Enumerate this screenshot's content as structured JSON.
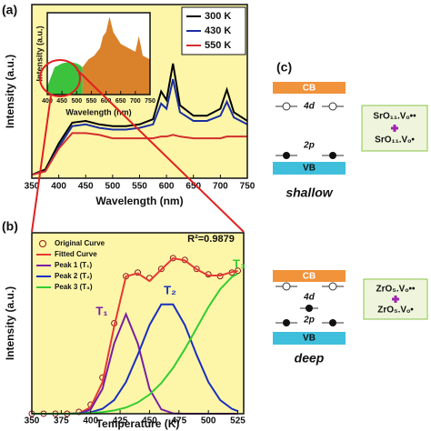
{
  "chart_data": [
    {
      "type": "line",
      "label": "(a)",
      "xlabel": "Wavelength (nm)",
      "ylabel": "Intensity (a.u.)",
      "x": [
        350,
        375,
        400,
        425,
        450,
        475,
        500,
        525,
        550,
        575,
        590,
        600,
        612,
        625,
        650,
        675,
        700,
        712,
        725,
        750
      ],
      "series": [
        {
          "name": "300 K",
          "color": "#000000",
          "values": [
            0.02,
            0.05,
            0.2,
            0.32,
            0.33,
            0.31,
            0.3,
            0.3,
            0.31,
            0.34,
            0.5,
            0.45,
            0.66,
            0.42,
            0.36,
            0.36,
            0.4,
            0.51,
            0.38,
            0.33
          ]
        },
        {
          "name": "430 K",
          "color": "#1a2fa0",
          "values": [
            0.02,
            0.04,
            0.18,
            0.3,
            0.31,
            0.29,
            0.28,
            0.28,
            0.29,
            0.31,
            0.43,
            0.4,
            0.57,
            0.38,
            0.33,
            0.33,
            0.36,
            0.44,
            0.35,
            0.31
          ]
        },
        {
          "name": "550 K",
          "color": "#d32f2f",
          "values": [
            0.02,
            0.04,
            0.17,
            0.26,
            0.26,
            0.25,
            0.23,
            0.23,
            0.23,
            0.23,
            0.24,
            0.24,
            0.25,
            0.24,
            0.23,
            0.23,
            0.23,
            0.24,
            0.24,
            0.24
          ]
        }
      ],
      "xlim": [
        350,
        750
      ],
      "ylim": [
        0,
        1
      ],
      "xticks": [
        350,
        400,
        450,
        500,
        550,
        600,
        650,
        700,
        750
      ],
      "legend": "upper right",
      "background": "#fdf6a8"
    },
    {
      "type": "area",
      "xlabel": "Wavelength (nm)",
      "ylabel": "Intensity (a.u.)",
      "x": [
        400,
        425,
        450,
        475,
        500,
        510,
        520,
        540,
        560,
        580,
        590,
        600,
        612,
        625,
        650,
        675,
        700,
        712,
        725,
        750
      ],
      "series": [
        {
          "color": "#3cc23c",
          "values": [
            0.1,
            0.35,
            0.4,
            0.42,
            0.4,
            0.38,
            0.35,
            null,
            null,
            null,
            null,
            null,
            null,
            null,
            null,
            null,
            null,
            null,
            null,
            null
          ]
        },
        {
          "color": "#d9822b",
          "values": [
            null,
            null,
            null,
            null,
            null,
            null,
            0.35,
            0.45,
            0.5,
            0.6,
            0.75,
            0.8,
            1.0,
            0.8,
            0.65,
            0.6,
            0.55,
            0.75,
            0.5,
            0.45
          ]
        }
      ],
      "xlim": [
        400,
        750
      ],
      "ylim": [
        0,
        1.05
      ],
      "xticks": [
        400,
        450,
        500,
        550,
        600,
        650,
        700,
        750
      ],
      "background": "#ffffff"
    },
    {
      "type": "line",
      "label": "(b)",
      "xlabel": "Temperature (K)",
      "ylabel": "Intensity (a.u.)",
      "x": [
        350,
        360,
        370,
        380,
        390,
        400,
        410,
        420,
        430,
        440,
        450,
        460,
        470,
        480,
        490,
        500,
        510,
        520,
        525
      ],
      "series": [
        {
          "name": "Original Curve",
          "color": "#8b1a1a",
          "marker": "circle",
          "values": [
            0,
            0,
            0,
            0,
            0.01,
            0.05,
            0.2,
            0.5,
            0.76,
            0.78,
            0.75,
            0.8,
            0.86,
            0.85,
            0.8,
            0.77,
            0.76,
            0.78,
            0.79
          ]
        },
        {
          "name": "Fitted Curve",
          "color": "#e53935",
          "values": [
            0,
            0,
            0,
            0,
            0.002,
            0.036,
            0.173,
            0.483,
            0.759,
            0.776,
            0.733,
            0.797,
            0.859,
            0.847,
            0.798,
            0.764,
            0.764,
            0.783,
            0.789
          ]
        },
        {
          "name": "Peak 1 (T₁)",
          "color": "#7b1fa2",
          "values": [
            0,
            0,
            0,
            0,
            0,
            0.024,
            0.137,
            0.389,
            0.55,
            0.389,
            0.137,
            0.024,
            0.002,
            0,
            0,
            0,
            0,
            0,
            0
          ]
        },
        {
          "name": "Peak 2 (T₂)",
          "color": "#1a2fc0",
          "values": [
            0,
            0,
            0,
            0,
            0.002,
            0.008,
            0.027,
            0.076,
            0.175,
            0.325,
            0.49,
            0.604,
            0.604,
            0.49,
            0.325,
            0.175,
            0.076,
            0.027,
            0.015
          ]
        },
        {
          "name": "Peak 3 (T₃)",
          "color": "#33cc33",
          "values": [
            0,
            0,
            0,
            0,
            0,
            0.004,
            0.009,
            0.018,
            0.034,
            0.062,
            0.106,
            0.169,
            0.253,
            0.357,
            0.473,
            0.589,
            0.688,
            0.756,
            0.774
          ]
        }
      ],
      "xlim": [
        350,
        530
      ],
      "ylim": [
        0,
        1
      ],
      "xticks": [
        350,
        375,
        400,
        425,
        450,
        475,
        500,
        525
      ],
      "legend": "upper left",
      "background": "#fdf6a8",
      "annotations": [
        {
          "text": "R²=0.9879",
          "color": "#111111"
        },
        {
          "text": "T₁",
          "color": "#7b1fa2"
        },
        {
          "text": "T₂",
          "color": "#1a2fc0"
        },
        {
          "text": "T₃",
          "color": "#33cc33"
        }
      ]
    }
  ],
  "diagram": {
    "label": "(c)",
    "panels": [
      {
        "cb": "CB",
        "upper": "4d",
        "lower": "2p",
        "vb": "VB",
        "defects": [
          "SrO₁₁.Vₒ••",
          "SrO₁₁.Vₒ•"
        ],
        "depth": "shallow"
      },
      {
        "cb": "CB",
        "upper": "4d",
        "lower": "2p",
        "vb": "VB",
        "defects": [
          "ZrO₅.Vₒ••",
          "ZrO₅.Vₒ•"
        ],
        "depth": "deep"
      }
    ]
  }
}
